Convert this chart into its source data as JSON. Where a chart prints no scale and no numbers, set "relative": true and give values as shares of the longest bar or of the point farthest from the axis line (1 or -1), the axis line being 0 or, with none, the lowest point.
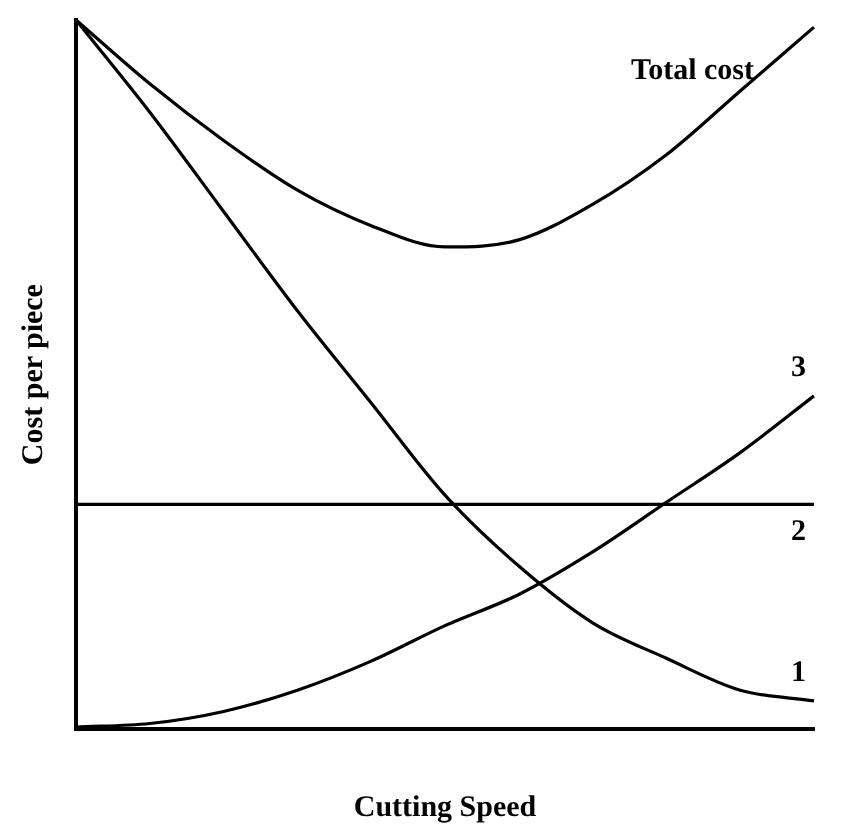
{
  "chart_data": {
    "type": "line",
    "relative": true,
    "xlabel": "Cutting Speed",
    "ylabel": "Cost per piece",
    "categories": [
      null,
      null,
      null,
      null,
      null,
      null,
      null,
      null,
      null,
      null,
      null
    ],
    "series": [
      {
        "name": "Total cost",
        "color": "#000000",
        "values": [
          1.0,
          0.91,
          0.83,
          0.76,
          0.71,
          0.68,
          0.69,
          0.74,
          0.81,
          0.9,
          0.99
        ]
      },
      {
        "name": "1",
        "color": "#000000",
        "values": [
          1.0,
          0.87,
          0.73,
          0.59,
          0.46,
          0.33,
          0.23,
          0.15,
          0.1,
          0.055,
          0.04
        ]
      },
      {
        "name": "2",
        "color": "#000000",
        "values": [
          0.317,
          0.317,
          0.317,
          0.317,
          0.317,
          0.317,
          0.317,
          0.317,
          0.317,
          0.317,
          0.317
        ]
      },
      {
        "name": "3",
        "color": "#000000",
        "values": [
          0.003,
          0.008,
          0.025,
          0.055,
          0.096,
          0.146,
          0.19,
          0.25,
          0.32,
          0.39,
          0.47
        ]
      }
    ],
    "legend": false,
    "grid": false,
    "marker": "none",
    "line_style": "solid"
  }
}
